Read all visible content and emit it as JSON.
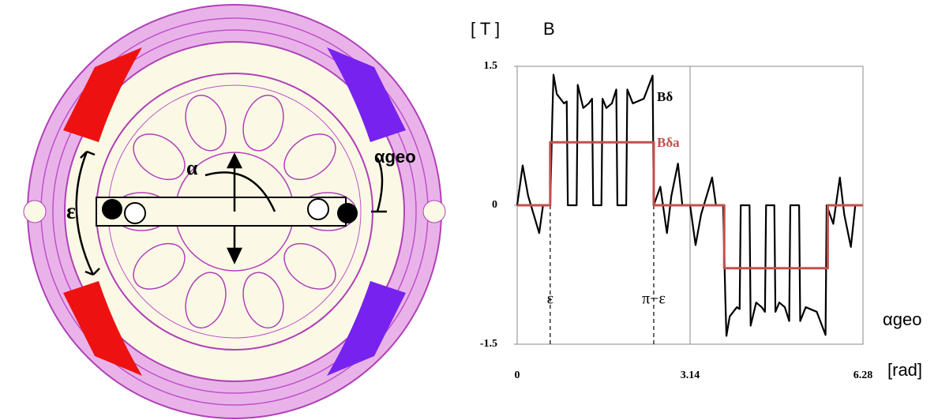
{
  "diagram": {
    "labels": [
      "ε",
      "α",
      "αgeo"
    ]
  },
  "chart_data": {
    "type": "line",
    "y_unit": "[ T ]",
    "y_label": "B",
    "x_label": "αgeo",
    "x_unit": "[rad]",
    "xlim": [
      0,
      6.28
    ],
    "ylim": [
      -1.5,
      1.5
    ],
    "xticks": [
      0,
      3.14,
      6.28
    ],
    "yticks": [
      1.5,
      0,
      -1.5
    ],
    "annotations": [
      {
        "text": "ε",
        "x": 0.6
      },
      {
        "text": "π−ε",
        "x": 2.48
      }
    ],
    "series": [
      {
        "name": "Bδ",
        "color": "#000000",
        "x": [
          0,
          0.1,
          0.2,
          0.4,
          0.47,
          0.6,
          0.64,
          0.66,
          0.72,
          0.85,
          0.9,
          0.92,
          1.08,
          1.1,
          1.2,
          1.3,
          1.36,
          1.38,
          1.53,
          1.55,
          1.62,
          1.72,
          1.8,
          1.82,
          1.98,
          2.0,
          2.1,
          2.3,
          2.46,
          2.48,
          2.6,
          2.72,
          2.8,
          2.92,
          3.0,
          3.14,
          3.24,
          3.34,
          3.54,
          3.61,
          3.74,
          3.78,
          3.8,
          3.86,
          3.99,
          4.04,
          4.06,
          4.22,
          4.24,
          4.34,
          4.44,
          4.5,
          4.52,
          4.67,
          4.69,
          4.76,
          4.86,
          4.94,
          4.96,
          5.12,
          5.14,
          5.24,
          5.44,
          5.6,
          5.62,
          5.74,
          5.86,
          5.94,
          6.06,
          6.14,
          6.28
        ],
        "values": [
          0,
          0.43,
          0.1,
          -0.3,
          0,
          0,
          1.0,
          1.41,
          1.2,
          1.1,
          1.12,
          0,
          0,
          1.3,
          1.05,
          1.1,
          1.15,
          0,
          0,
          1.15,
          1.05,
          1.1,
          1.25,
          0,
          0,
          1.25,
          1.1,
          1.15,
          1.4,
          0,
          0.2,
          -0.3,
          0.1,
          0.45,
          0,
          0,
          -0.43,
          -0.1,
          0.3,
          0,
          0,
          -1.0,
          -1.41,
          -1.2,
          -1.1,
          -1.12,
          0,
          0,
          -1.3,
          -1.05,
          -1.1,
          -1.15,
          0,
          0,
          -1.15,
          -1.05,
          -1.1,
          -1.25,
          0,
          0,
          -1.25,
          -1.1,
          -1.15,
          -1.4,
          0,
          -0.2,
          0.3,
          -0.1,
          -0.45,
          0,
          0
        ]
      },
      {
        "name": "Bδa",
        "color": "#c0504d",
        "x": [
          0,
          0.6,
          0.6,
          2.48,
          2.48,
          3.76,
          3.76,
          5.64,
          5.64,
          6.28
        ],
        "values": [
          0,
          0,
          0.68,
          0.68,
          0,
          0,
          -0.68,
          -0.68,
          0,
          0
        ]
      }
    ]
  }
}
